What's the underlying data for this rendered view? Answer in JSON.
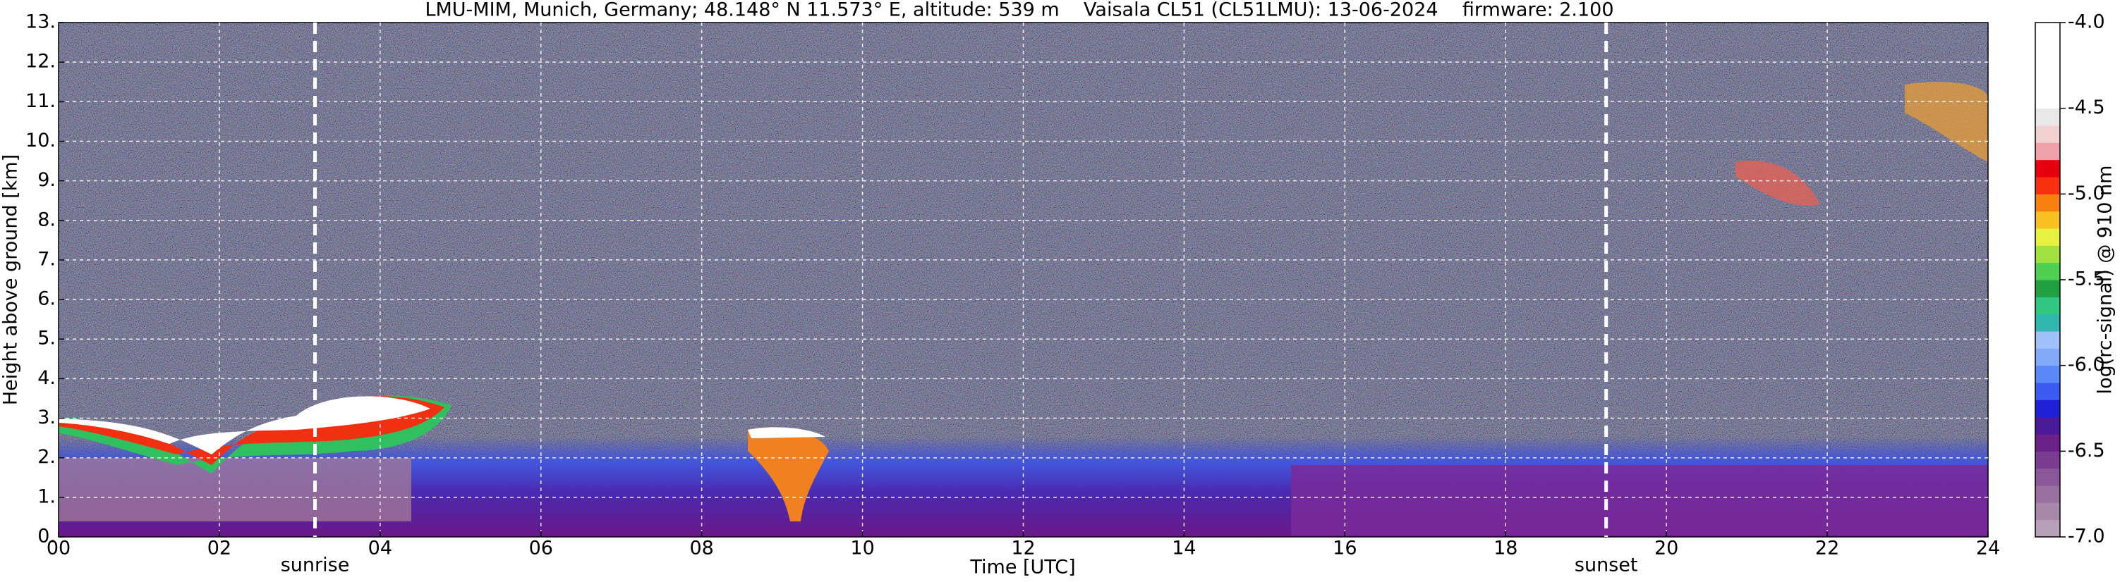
{
  "chart_data": {
    "type": "heatmap",
    "title": "LMU-MIM, Munich, Germany; 48.148° N 11.573° E, altitude: 539 m    Vaisala CL51 (CL51LMU): 13-06-2024    firmware: 2.100",
    "xlabel": "Time [UTC]",
    "ylabel": "Height above ground [km]",
    "xlim": [
      0,
      24
    ],
    "xticks": [
      {
        "value": 0,
        "label": "00"
      },
      {
        "value": 2,
        "label": "02"
      },
      {
        "value": 4,
        "label": "04"
      },
      {
        "value": 6,
        "label": "06"
      },
      {
        "value": 8,
        "label": "08"
      },
      10,
      12,
      14,
      16,
      18,
      20,
      22,
      24
    ],
    "ylim": [
      0,
      13
    ],
    "yticks": [
      {
        "value": 0,
        "label": "0."
      },
      {
        "value": 1,
        "label": "1."
      },
      {
        "value": 2,
        "label": "2."
      },
      {
        "value": 3,
        "label": "3."
      },
      {
        "value": 4,
        "label": "4."
      },
      {
        "value": 5,
        "label": "5."
      },
      {
        "value": 6,
        "label": "6."
      },
      {
        "value": 7,
        "label": "7."
      },
      {
        "value": 8,
        "label": "8."
      },
      {
        "value": 9,
        "label": "9."
      },
      {
        "value": 10,
        "label": "10."
      },
      {
        "value": 11,
        "label": "11."
      },
      {
        "value": 12,
        "label": "12."
      },
      {
        "value": 13,
        "label": "13."
      }
    ],
    "grid": true,
    "annotations": [
      {
        "text": "sunrise",
        "x": 3.19
      },
      {
        "text": "sunset",
        "x": 19.25
      }
    ],
    "colorbar": {
      "label": "log(rc-signal) @ 910 nm",
      "lim": [
        -7,
        -4
      ],
      "ticks": [
        {
          "value": -4,
          "label": "-4.0"
        },
        -4.5,
        {
          "value": -5,
          "label": "-5.0"
        },
        -5.5,
        {
          "value": -6,
          "label": "-6.0"
        },
        -6.5,
        {
          "value": -7,
          "label": "-7.0"
        }
      ],
      "colors": [
        "#b8a0b8",
        "#a888aa",
        "#9a70a0",
        "#8a5898",
        "#7a3c90",
        "#6a2088",
        "#4a1a9a",
        "#2020d8",
        "#3a5cf0",
        "#5a88f8",
        "#80aaf8",
        "#a0c0f8",
        "#30b8b0",
        "#30c880",
        "#20a040",
        "#50d050",
        "#a0e040",
        "#e8f040",
        "#f8c020",
        "#f88010",
        "#f83010",
        "#e80010",
        "#f0a0a8",
        "#f0d0d0",
        "#e8e8e8",
        "#ffffff",
        "#ffffff",
        "#ffffff",
        "#ffffff",
        "#ffffff"
      ]
    }
  }
}
